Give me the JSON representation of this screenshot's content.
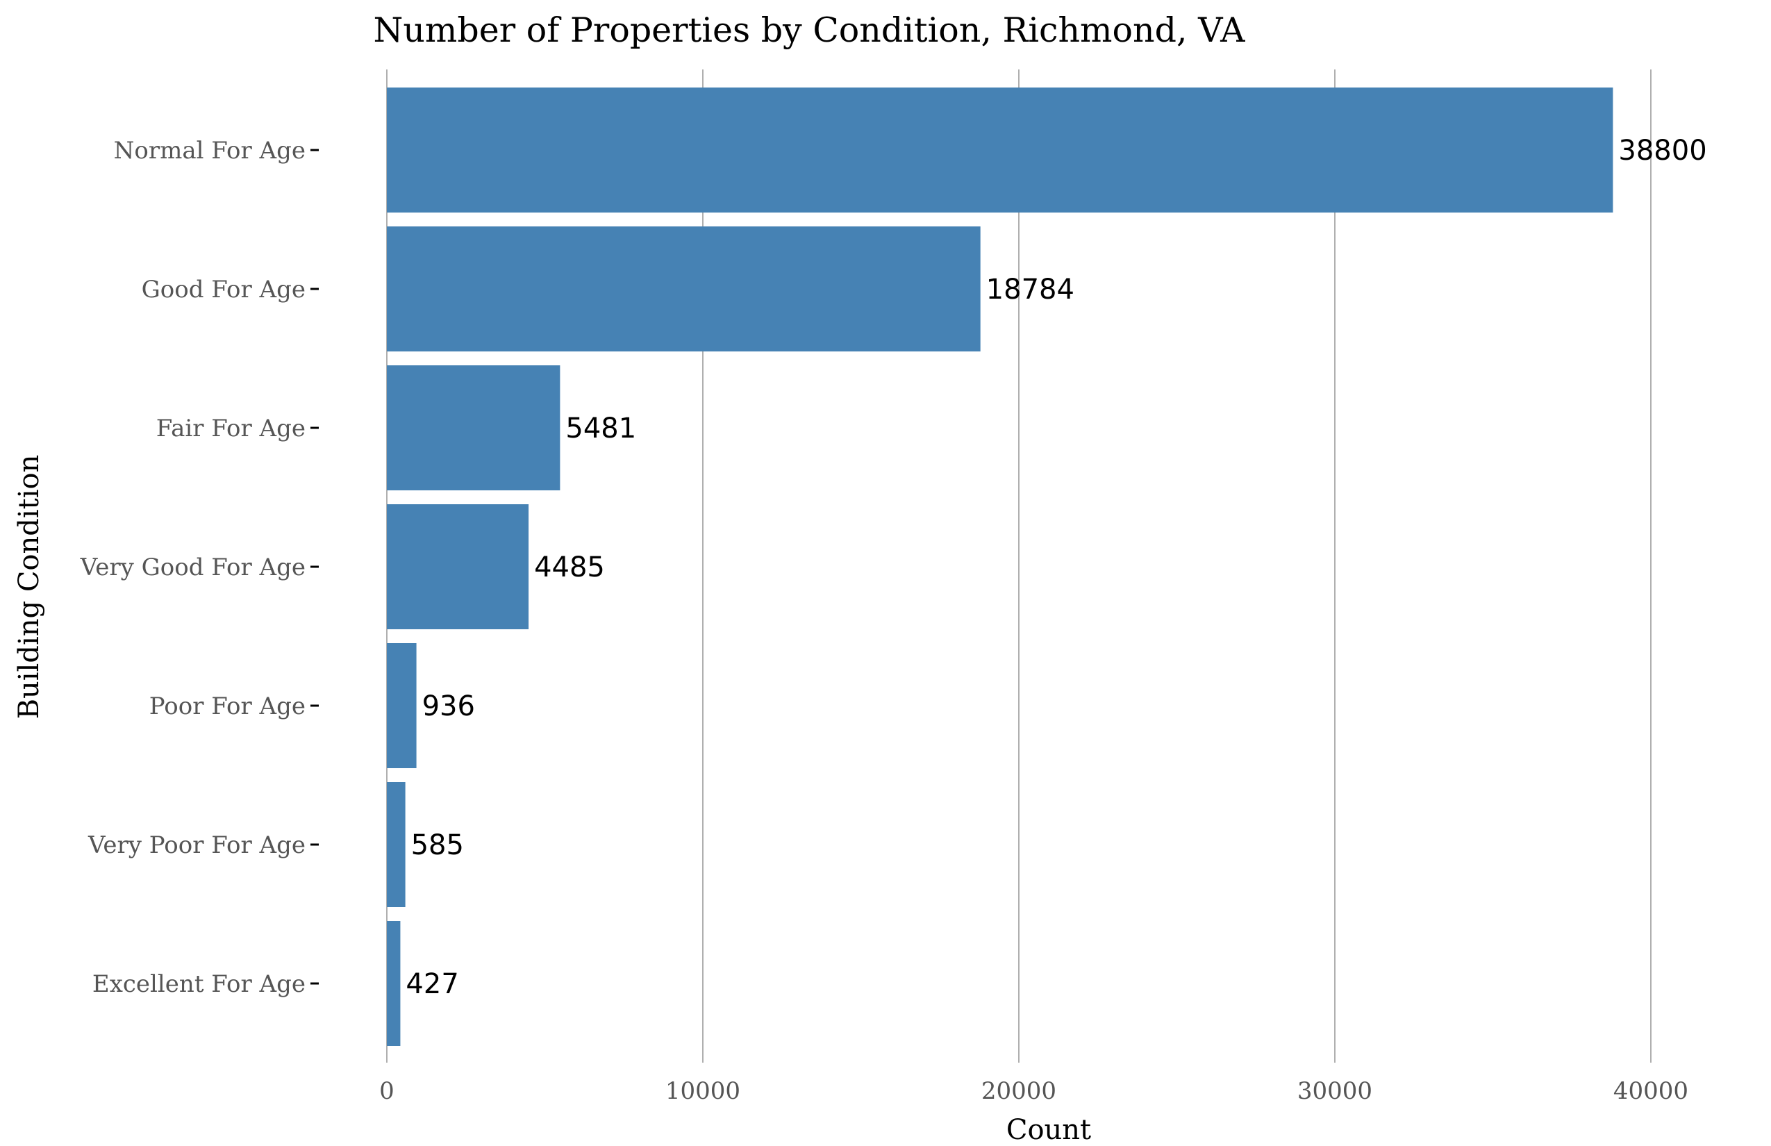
{
  "chart_data": {
    "type": "bar",
    "orientation": "horizontal",
    "title": "Number of Properties by Condition, Richmond, VA",
    "xlabel": "Count",
    "ylabel": "Building Condition",
    "categories": [
      "Normal For Age",
      "Good For Age",
      "Fair For Age",
      "Very Good For Age",
      "Poor For Age",
      "Very Poor For Age",
      "Excellent For Age"
    ],
    "values": [
      38800,
      18784,
      5481,
      4485,
      936,
      585,
      427
    ],
    "data_labels": [
      "38800",
      "18784",
      "5481",
      "4485",
      "936",
      "585",
      "427"
    ],
    "xlim": [
      0,
      42000
    ],
    "xticks": [
      0,
      10000,
      20000,
      30000,
      40000
    ],
    "xtick_labels": [
      "0",
      "10000",
      "20000",
      "30000",
      "40000"
    ],
    "grid": "vertical",
    "bar_color": "#4682b4",
    "grid_color": "#b0b0b0"
  }
}
